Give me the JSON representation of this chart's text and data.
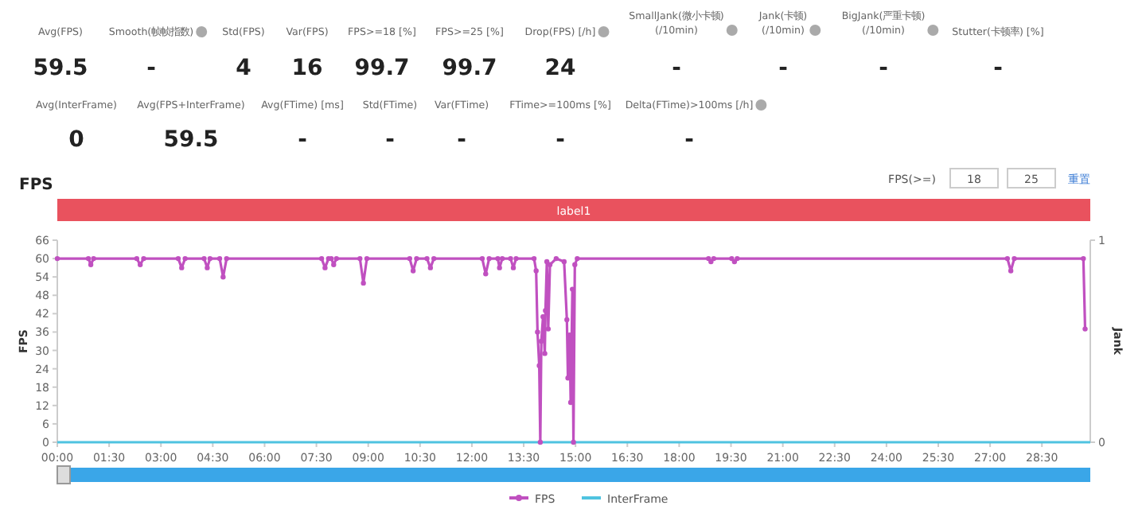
{
  "chart_data": [
    {
      "type": "other",
      "categories": [
        "Avg(FPS)",
        "Smooth(帧帧指数)",
        "Std(FPS)",
        "Var(FPS)",
        "FPS>=18 [%]",
        "FPS>=25 [%]",
        "Drop(FPS) [/h]",
        "SmallJank(微小卡顿)\n(/10min)",
        "Jank(卡顿)\n(/10min)",
        "BigJank(严重卡顿)\n(/10min)",
        "Stutter(卡顿率) [%]",
        "Avg(InterFrame)",
        "Avg(FPS+InterFrame)",
        "Avg(FTime) [ms]",
        "Std(FTime)",
        "Var(FTime)",
        "FTime>=100ms [%]",
        "Delta(FTime)>100ms [/h]"
      ],
      "value_labels": [
        "59.5",
        "-",
        "4",
        "16",
        "99.7",
        "99.7",
        "24",
        "-",
        "-",
        "-",
        "-",
        "0",
        "59.5",
        "-",
        "-",
        "-",
        "-",
        "-"
      ]
    },
    {
      "type": "line",
      "title": "FPS",
      "ylabel": "FPS",
      "y2label": "Jank",
      "annotations": [
        "label1",
        "FPS(>=)",
        "18",
        "25",
        "重置"
      ],
      "xlim": [
        0,
        29.9
      ],
      "xticks": [
        {
          "value": 0,
          "label": "00:00"
        },
        {
          "value": 1.5,
          "label": "01:30"
        },
        {
          "value": 3,
          "label": "03:00"
        },
        {
          "value": 4.5,
          "label": "04:30"
        },
        {
          "value": 6,
          "label": "06:00"
        },
        {
          "value": 7.5,
          "label": "07:30"
        },
        {
          "value": 9,
          "label": "09:00"
        },
        {
          "value": 10.5,
          "label": "10:30"
        },
        {
          "value": 12,
          "label": "12:00"
        },
        {
          "value": 13.5,
          "label": "13:30"
        },
        {
          "value": 15,
          "label": "15:00"
        },
        {
          "value": 16.5,
          "label": "16:30"
        },
        {
          "value": 18,
          "label": "18:00"
        },
        {
          "value": 19.5,
          "label": "19:30"
        },
        {
          "value": 21,
          "label": "21:00"
        },
        {
          "value": 22.5,
          "label": "22:30"
        },
        {
          "value": 24,
          "label": "24:00"
        },
        {
          "value": 25.5,
          "label": "25:30"
        },
        {
          "value": 27,
          "label": "27:00"
        },
        {
          "value": 28.5,
          "label": "28:30"
        }
      ],
      "ylim": [
        0,
        66
      ],
      "yticks": [
        0,
        6,
        12,
        18,
        24,
        30,
        36,
        42,
        48,
        54,
        60,
        66
      ],
      "y2lim": [
        0,
        1
      ],
      "y2ticks": [
        0,
        1
      ],
      "grid": false,
      "legend": "bottom",
      "series": [
        {
          "name": "FPS",
          "color": "#c050c0",
          "marker": "circle",
          "x": [
            0,
            0.9,
            0.97,
            1.05,
            2.3,
            2.4,
            2.5,
            3.5,
            3.6,
            3.7,
            4.25,
            4.34,
            4.42,
            4.7,
            4.8,
            4.9,
            7.65,
            7.75,
            7.85,
            7.93,
            8.0,
            8.08,
            8.76,
            8.86,
            8.96,
            10.2,
            10.3,
            10.4,
            10.7,
            10.8,
            10.9,
            12.3,
            12.4,
            12.5,
            12.75,
            12.8,
            12.88,
            13.12,
            13.2,
            13.28,
            13.8,
            13.86,
            13.9,
            13.95,
            13.98,
            14.01,
            14.06,
            14.11,
            14.13,
            14.17,
            14.21,
            14.26,
            14.44,
            14.67,
            14.75,
            14.78,
            14.83,
            14.86,
            14.91,
            14.94,
            14.98,
            15.05,
            18.85,
            18.92,
            19.0,
            19.52,
            19.6,
            19.68,
            27.5,
            27.6,
            27.7,
            29.7,
            29.75
          ],
          "values": [
            60,
            60,
            58,
            60,
            60,
            58,
            60,
            60,
            57,
            60,
            60,
            57,
            60,
            60,
            54,
            60,
            60,
            57,
            60,
            60,
            58,
            60,
            60,
            52,
            60,
            60,
            56,
            60,
            60,
            57,
            60,
            60,
            55,
            60,
            60,
            57,
            60,
            60,
            57,
            60,
            60,
            56,
            36,
            25,
            0,
            33,
            41,
            29,
            43,
            59,
            37,
            58,
            60,
            59,
            40,
            21,
            35,
            13,
            50,
            0,
            58,
            60,
            60,
            59,
            60,
            60,
            59,
            60,
            60,
            56,
            60,
            60,
            37
          ]
        },
        {
          "name": "InterFrame",
          "color": "#4fc3e0",
          "marker": "none",
          "x": [
            0,
            29.9
          ],
          "values": [
            0,
            0
          ]
        }
      ]
    }
  ]
}
